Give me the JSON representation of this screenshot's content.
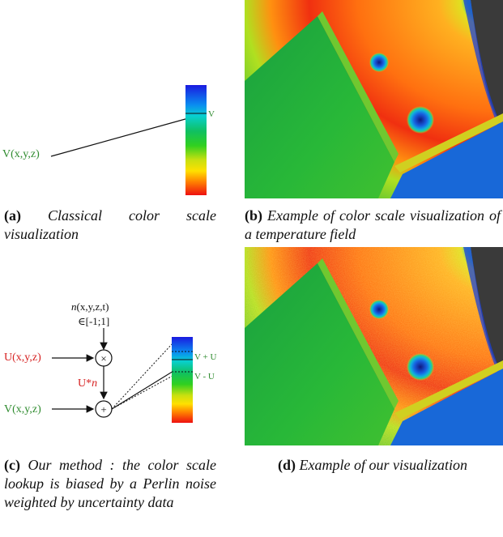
{
  "figure_a": {
    "input_label": "V(x,y,z)",
    "scale_label": "V",
    "caption_label": "(a)",
    "caption_text": "Classical color scale visualization"
  },
  "figure_b": {
    "caption_label": "(b)",
    "caption_text": "Example of color scale visualization of a temperature field"
  },
  "figure_c": {
    "noise_label_italic": "n",
    "noise_label_rest": "(x,y,z,t)",
    "noise_range": "∈[-1;1]",
    "uncertainty_label": "U(x,y,z)",
    "multiply_symbol": "×",
    "weighted_label_u": "U*",
    "weighted_label_n": "n",
    "value_label": "V(x,y,z)",
    "add_symbol": "+",
    "upper_label": "V + U",
    "lower_label": "V - U",
    "caption_label": "(c)",
    "caption_text": "Our method : the color scale lookup is biased by a Perlin noise weighted by uncertainty data"
  },
  "figure_d": {
    "caption_label": "(d)",
    "caption_text": "Example of our visualization"
  },
  "colors": {
    "value_green": "#2e8b2e",
    "uncertainty_red": "#d62020"
  }
}
